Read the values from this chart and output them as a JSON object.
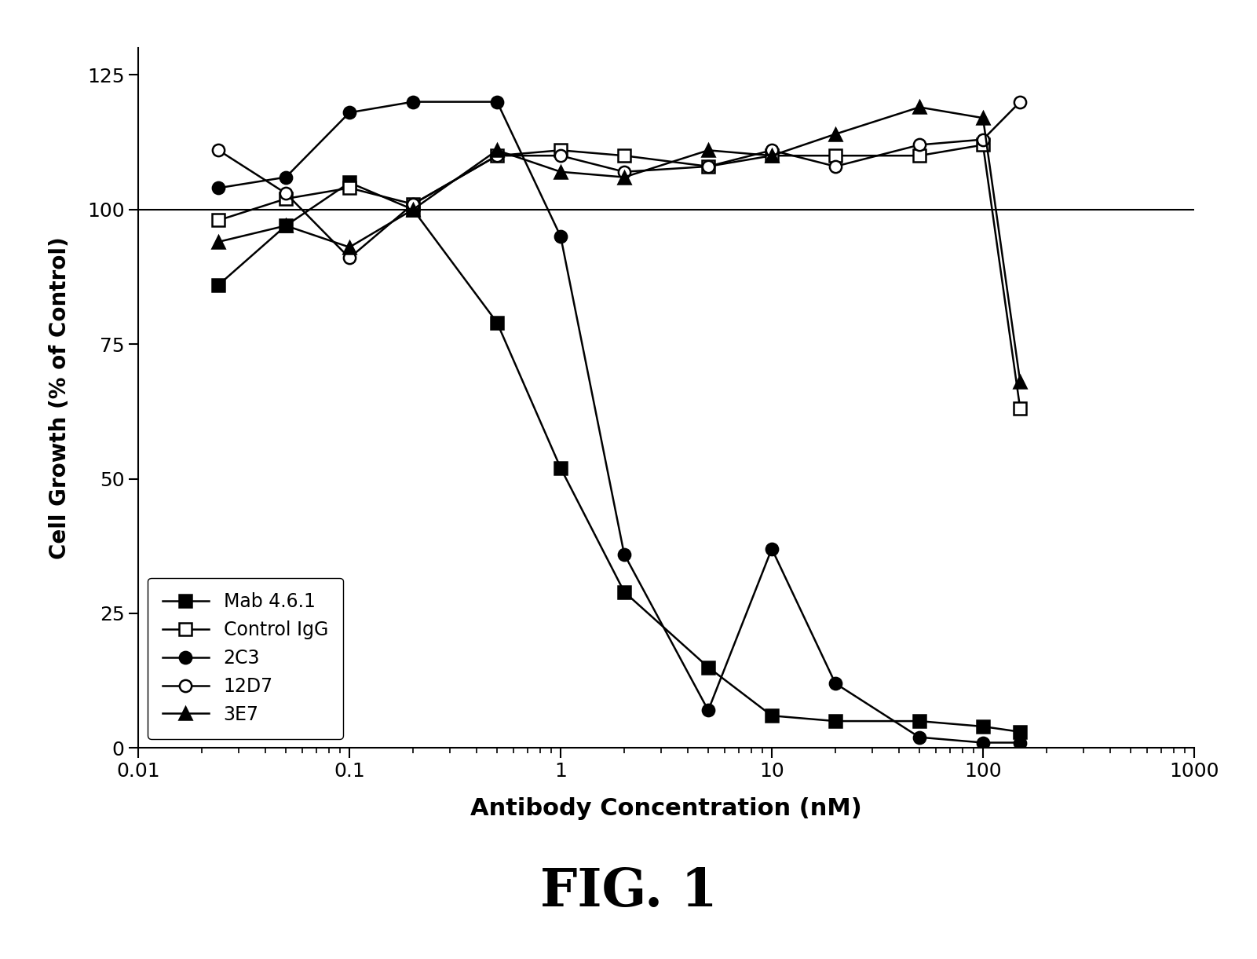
{
  "series": {
    "Mab 4.6.1": {
      "x": [
        0.024,
        0.05,
        0.1,
        0.2,
        0.5,
        1.0,
        2.0,
        5.0,
        10.0,
        20.0,
        50.0,
        100.0,
        150.0
      ],
      "y": [
        86,
        97,
        105,
        100,
        79,
        52,
        29,
        15,
        6,
        5,
        5,
        4,
        3
      ],
      "marker": "s",
      "filled": true,
      "color": "black"
    },
    "Control IgG": {
      "x": [
        0.024,
        0.05,
        0.1,
        0.2,
        0.5,
        1.0,
        2.0,
        5.0,
        10.0,
        20.0,
        50.0,
        100.0,
        150.0
      ],
      "y": [
        98,
        102,
        104,
        101,
        110,
        111,
        110,
        108,
        110,
        110,
        110,
        112,
        63
      ],
      "marker": "s",
      "filled": false,
      "color": "black"
    },
    "2C3": {
      "x": [
        0.024,
        0.05,
        0.1,
        0.2,
        0.5,
        1.0,
        2.0,
        5.0,
        10.0,
        20.0,
        50.0,
        100.0,
        150.0
      ],
      "y": [
        104,
        106,
        118,
        120,
        120,
        95,
        36,
        7,
        37,
        12,
        2,
        1,
        1
      ],
      "marker": "o",
      "filled": true,
      "color": "black"
    },
    "12D7": {
      "x": [
        0.024,
        0.05,
        0.1,
        0.2,
        0.5,
        1.0,
        2.0,
        5.0,
        10.0,
        20.0,
        50.0,
        100.0,
        150.0
      ],
      "y": [
        111,
        103,
        91,
        101,
        110,
        110,
        107,
        108,
        111,
        108,
        112,
        113,
        120
      ],
      "marker": "o",
      "filled": false,
      "color": "black"
    },
    "3E7": {
      "x": [
        0.024,
        0.05,
        0.1,
        0.2,
        0.5,
        1.0,
        2.0,
        5.0,
        10.0,
        20.0,
        50.0,
        100.0,
        150.0
      ],
      "y": [
        94,
        97,
        93,
        100,
        111,
        107,
        106,
        111,
        110,
        114,
        119,
        117,
        68
      ],
      "marker": "^",
      "filled": true,
      "color": "black"
    }
  },
  "xlim": [
    0.01,
    1000
  ],
  "ylim": [
    0,
    130
  ],
  "yticks": [
    0,
    25,
    50,
    75,
    100,
    125
  ],
  "xlabel": "Antibody Concentration (nM)",
  "ylabel": "Cell Growth (% of Control)",
  "hline_y": 100,
  "title": "FIG. 1",
  "bg_color": "#ffffff",
  "figsize": [
    16.01,
    12.21
  ],
  "dpi": 100
}
